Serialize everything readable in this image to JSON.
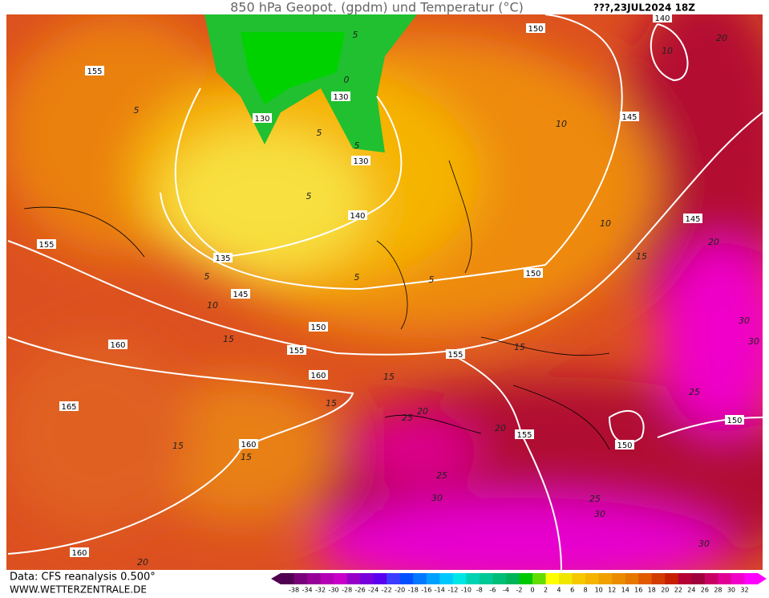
{
  "header": {
    "title": "850 hPa Geopot. (gpdm) und Temperatur (°C)",
    "date": "???,23JUL2024 18Z"
  },
  "geopotential_labels": [
    "155",
    "150",
    "140",
    "130",
    "130",
    "130",
    "145",
    "140",
    "145",
    "155",
    "135",
    "150",
    "145",
    "150",
    "160",
    "155",
    "155",
    "160",
    "165",
    "150",
    "160",
    "155",
    "150",
    "160"
  ],
  "temperature_labels": [
    "5",
    "20",
    "10",
    "0",
    "5",
    "5",
    "10",
    "5",
    "5",
    "10",
    "20",
    "15",
    "5",
    "5",
    "5",
    "10",
    "15",
    "15",
    "15",
    "15",
    "20",
    "25",
    "25",
    "30",
    "30",
    "20",
    "15",
    "15",
    "25",
    "30",
    "25",
    "30",
    "30",
    "20"
  ],
  "footer": {
    "source": "Data: CFS reanalysis 0.500°",
    "site": "WWW.WETTERZENTRALE.DE"
  },
  "color_scale": {
    "labels": [
      "-38",
      "-34",
      "-32",
      "-30",
      "-28",
      "-26",
      "-24",
      "-22",
      "-20",
      "-18",
      "-16",
      "-14",
      "-12",
      "-10",
      "-8",
      "-6",
      "-4",
      "-2",
      "0",
      "2",
      "4",
      "6",
      "8",
      "10",
      "12",
      "14",
      "16",
      "18",
      "20",
      "22",
      "24",
      "26",
      "28",
      "30",
      "32"
    ],
    "colors": [
      "#500050",
      "#780078",
      "#960096",
      "#b400b4",
      "#c800c8",
      "#9600c8",
      "#7800dc",
      "#5a00f0",
      "#3c3cff",
      "#0050ff",
      "#0078ff",
      "#00a0ff",
      "#00c8ff",
      "#00e6e6",
      "#00d2b4",
      "#00c896",
      "#00be78",
      "#00b45a",
      "#00c800",
      "#64dc00",
      "#ffff00",
      "#f0e600",
      "#f5c800",
      "#f5b400",
      "#f0a000",
      "#eb8c00",
      "#e67800",
      "#e15a00",
      "#d23c00",
      "#c81e00",
      "#b40032",
      "#a0003c",
      "#c80064",
      "#e10096",
      "#f000c8",
      "#ff00ff"
    ]
  }
}
